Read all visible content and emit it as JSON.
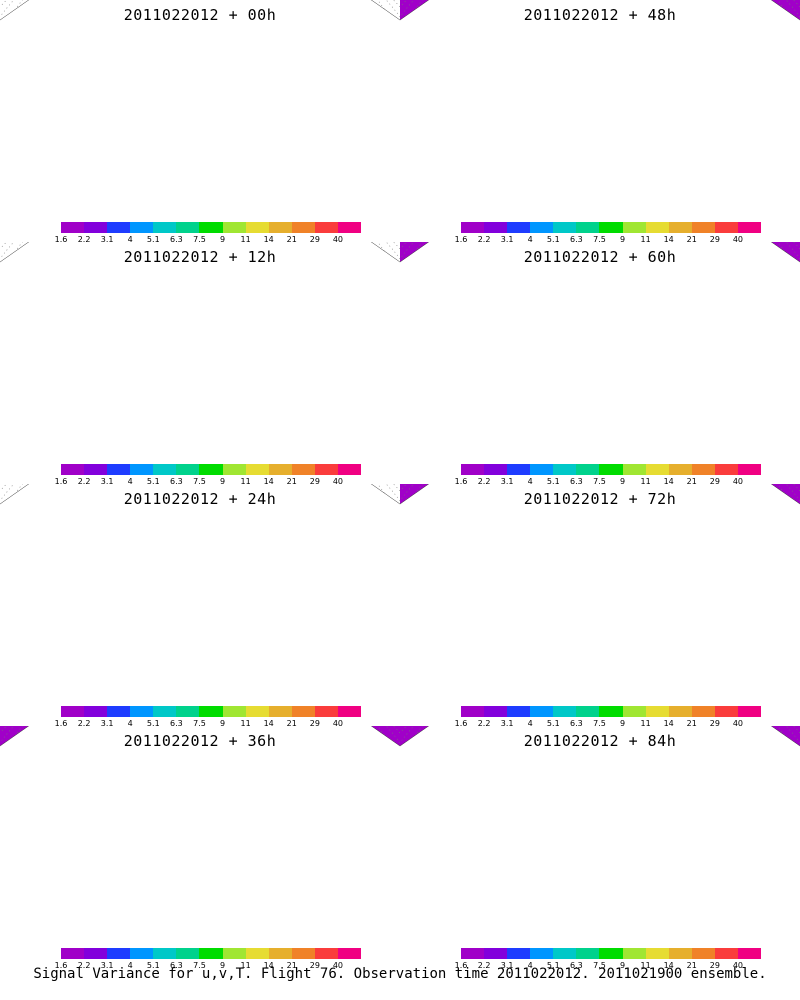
{
  "panels": [
    {
      "title": "2011022012 + 00h",
      "intensity": 0.05
    },
    {
      "title": "2011022012 + 48h",
      "intensity": 0.65
    },
    {
      "title": "2011022012 + 12h",
      "intensity": 0.2
    },
    {
      "title": "2011022012 + 60h",
      "intensity": 0.75
    },
    {
      "title": "2011022012 + 24h",
      "intensity": 0.35
    },
    {
      "title": "2011022012 + 72h",
      "intensity": 0.85
    },
    {
      "title": "2011022012 + 36h",
      "intensity": 0.5
    },
    {
      "title": "2011022012 + 84h",
      "intensity": 0.95
    }
  ],
  "colorbar": {
    "labels": [
      "1.6",
      "2.2",
      "3.1",
      "4",
      "5.1",
      "6.3",
      "7.5",
      "9",
      "11",
      "14",
      "21",
      "29",
      "40"
    ],
    "colors": [
      "#a000c8",
      "#8200dc",
      "#1e3cff",
      "#0096ff",
      "#00c8c8",
      "#00d28c",
      "#00dc00",
      "#a0e632",
      "#e6dc32",
      "#e6af2d",
      "#f08228",
      "#fa3c3c",
      "#f00082"
    ]
  },
  "caption": "Signal Variance for u,v,T. Flight 76. Observation time 2011022012. 2011021900 ensemble."
}
